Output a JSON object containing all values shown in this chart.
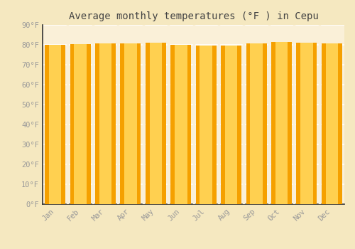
{
  "title": "Average monthly temperatures (°F ) in Cepu",
  "months": [
    "Jan",
    "Feb",
    "Mar",
    "Apr",
    "May",
    "Jun",
    "Jul",
    "Aug",
    "Sep",
    "Oct",
    "Nov",
    "Dec"
  ],
  "values": [
    80.1,
    80.2,
    80.6,
    80.8,
    81.1,
    80.1,
    79.5,
    79.7,
    80.6,
    81.3,
    81.1,
    80.6
  ],
  "bar_color_center": "#FFB800",
  "bar_color_edge": "#F5A000",
  "bar_color_inner": "#FFD050",
  "background_color": "#F5E8C0",
  "plot_bg_color": "#FAF0D8",
  "grid_color": "#FFFFFF",
  "tick_label_color": "#999999",
  "title_color": "#444444",
  "axis_color": "#333333",
  "ylim": [
    0,
    90
  ],
  "yticks": [
    0,
    10,
    20,
    30,
    40,
    50,
    60,
    70,
    80,
    90
  ],
  "ytick_labels": [
    "0°F",
    "10°F",
    "20°F",
    "30°F",
    "40°F",
    "50°F",
    "60°F",
    "70°F",
    "80°F",
    "90°F"
  ],
  "title_fontsize": 10,
  "tick_fontsize": 7.5,
  "font_family": "monospace"
}
